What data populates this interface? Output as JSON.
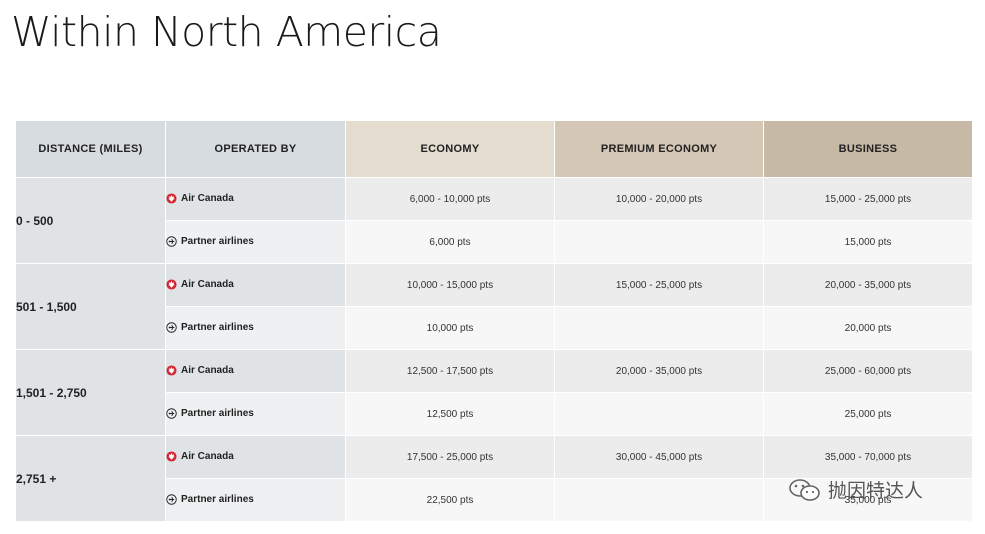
{
  "title": "Within North America",
  "headers": {
    "distance": "DISTANCE (MILES)",
    "operated_by": "OPERATED BY",
    "economy": "ECONOMY",
    "premium_economy": "PREMIUM ECONOMY",
    "business": "BUSINESS"
  },
  "operators": {
    "air_canada": "Air Canada",
    "partner": "Partner airlines"
  },
  "bands": [
    {
      "distance": "0 - 500",
      "air_canada": {
        "economy": "6,000 - 10,000 pts",
        "premium": "10,000 - 20,000 pts",
        "business": "15,000 - 25,000 pts"
      },
      "partner": {
        "economy": "6,000 pts",
        "premium": "",
        "business": "15,000 pts"
      }
    },
    {
      "distance": "501 - 1,500",
      "air_canada": {
        "economy": "10,000 - 15,000 pts",
        "premium": "15,000 - 25,000 pts",
        "business": "20,000 - 35,000 pts"
      },
      "partner": {
        "economy": "10,000 pts",
        "premium": "",
        "business": "20,000 pts"
      }
    },
    {
      "distance": "1,501 - 2,750",
      "air_canada": {
        "economy": "12,500 - 17,500 pts",
        "premium": "20,000 - 35,000 pts",
        "business": "25,000 - 60,000 pts"
      },
      "partner": {
        "economy": "12,500 pts",
        "premium": "",
        "business": "25,000 pts"
      }
    },
    {
      "distance": "2,751 +",
      "air_canada": {
        "economy": "17,500 - 25,000 pts",
        "premium": "30,000 - 45,000 pts",
        "business": "35,000 - 70,000 pts"
      },
      "partner": {
        "economy": "22,500 pts",
        "premium": "",
        "business": "35,000 pts"
      }
    }
  ],
  "icons": {
    "air_canada": "maple-leaf-icon",
    "partner": "plane-circle-icon",
    "watermark": "wechat-icon"
  },
  "colors": {
    "air_canada_red": "#d22630"
  },
  "watermark": "抛因特达人"
}
